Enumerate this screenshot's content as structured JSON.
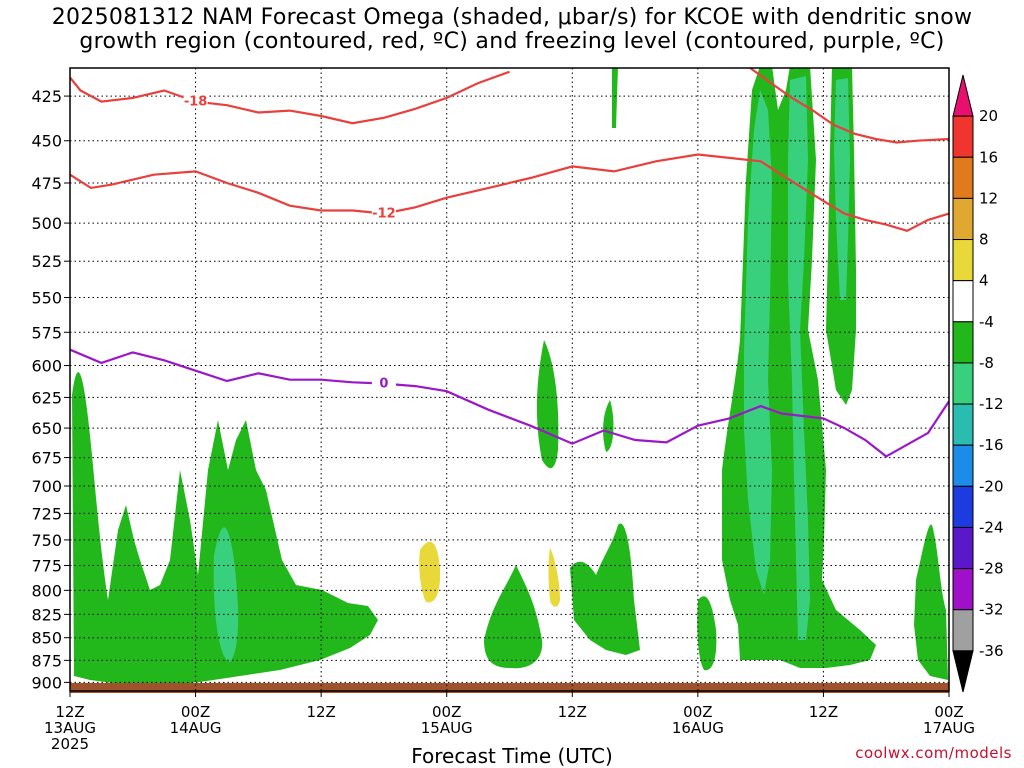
{
  "title": {
    "line1": "2025081312 NAM Forecast Omega (shaded, μbar/s) for KCOE with dendritic snow",
    "line2": "growth region (contoured, red, ºC) and freezing level (contoured, purple, ºC)"
  },
  "xlabel": "Forecast Time (UTC)",
  "credit": "coolwx.com/models",
  "chart_data": {
    "type": "heatmap",
    "xlabel": "Forecast Time (UTC)",
    "ylabel": "",
    "x_ticks": [
      {
        "l1": "12Z",
        "l2": "13AUG",
        "l3": "2025"
      },
      {
        "l1": "00Z",
        "l2": "14AUG",
        "l3": ""
      },
      {
        "l1": "12Z",
        "l2": "",
        "l3": ""
      },
      {
        "l1": "00Z",
        "l2": "15AUG",
        "l3": ""
      },
      {
        "l1": "12Z",
        "l2": "",
        "l3": ""
      },
      {
        "l1": "00Z",
        "l2": "16AUG",
        "l3": ""
      },
      {
        "l1": "12Z",
        "l2": "",
        "l3": ""
      },
      {
        "l1": "00Z",
        "l2": "17AUG",
        "l3": ""
      }
    ],
    "x_range_hours": [
      0,
      84
    ],
    "y_axis": "pressure (mb), inverted",
    "y_range": [
      410,
      910
    ],
    "y_ticks": [
      425,
      450,
      475,
      500,
      525,
      550,
      575,
      600,
      625,
      650,
      675,
      700,
      725,
      750,
      775,
      800,
      825,
      850,
      875,
      900
    ],
    "grid": true,
    "colorbar": {
      "labels": [
        "20",
        "16",
        "12",
        "8",
        "4",
        "-4",
        "-8",
        "-12",
        "-16",
        "-20",
        "-24",
        "-28",
        "-32",
        "-36"
      ],
      "colors": [
        "#e8106e",
        "#f0342e",
        "#e07a1c",
        "#e0a830",
        "#e8d83a",
        "#ffffff",
        "#22b81c",
        "#38d07c",
        "#2abcb0",
        "#1c8ce8",
        "#1c3ce0",
        "#5a18c8",
        "#a010c8",
        "#a0a0a0",
        "#000000"
      ]
    },
    "contours": {
      "dendritic_red": [
        {
          "value": -18,
          "label": "-18",
          "color": "#e8403c",
          "points": [
            [
              0,
              415
            ],
            [
              1,
              422
            ],
            [
              3,
              428
            ],
            [
              6,
              426
            ],
            [
              9,
              422
            ],
            [
              12,
              428
            ],
            [
              15,
              430
            ],
            [
              18,
              434
            ],
            [
              21,
              433
            ],
            [
              24,
              436
            ],
            [
              27,
              440
            ],
            [
              30,
              437
            ],
            [
              33,
              432
            ],
            [
              36,
              426
            ],
            [
              39,
              418
            ],
            [
              42,
              412
            ]
          ]
        },
        {
          "value": -18,
          "label": "",
          "color": "#e8403c",
          "points": [
            [
              65,
              410
            ],
            [
              67,
              418
            ],
            [
              69,
              426
            ],
            [
              71,
              433
            ],
            [
              73,
              441
            ],
            [
              75,
              446
            ],
            [
              77,
              449
            ],
            [
              79,
              451
            ],
            [
              81,
              450
            ],
            [
              84,
              449
            ]
          ]
        },
        {
          "value": -12,
          "label": "-12",
          "color": "#e8403c",
          "points": [
            [
              0,
              470
            ],
            [
              2,
              478
            ],
            [
              4,
              476
            ],
            [
              8,
              470
            ],
            [
              12,
              468
            ],
            [
              15,
              475
            ],
            [
              18,
              481
            ],
            [
              21,
              489
            ],
            [
              24,
              492
            ],
            [
              27,
              492
            ],
            [
              30,
              494
            ],
            [
              33,
              490
            ],
            [
              36,
              484
            ],
            [
              40,
              478
            ],
            [
              44,
              472
            ],
            [
              48,
              465
            ],
            [
              52,
              468
            ],
            [
              56,
              462
            ],
            [
              60,
              458
            ],
            [
              63,
              460
            ],
            [
              66,
              462
            ],
            [
              68,
              470
            ],
            [
              70,
              478
            ],
            [
              72,
              486
            ],
            [
              74,
              494
            ],
            [
              76,
              498
            ],
            [
              78,
              501
            ],
            [
              80,
              505
            ],
            [
              82,
              498
            ],
            [
              84,
              494
            ]
          ]
        }
      ],
      "freezing_purple": [
        {
          "value": 0,
          "label": "0",
          "color": "#9a18c8",
          "points": [
            [
              0,
              588
            ],
            [
              3,
              598
            ],
            [
              6,
              590
            ],
            [
              9,
              596
            ],
            [
              12,
              604
            ],
            [
              15,
              612
            ],
            [
              18,
              606
            ],
            [
              21,
              611
            ],
            [
              24,
              611
            ],
            [
              27,
              613
            ],
            [
              30,
              614
            ],
            [
              33,
              616
            ],
            [
              36,
              620
            ],
            [
              40,
              635
            ],
            [
              44,
              648
            ],
            [
              48,
              663
            ],
            [
              51,
              652
            ],
            [
              54,
              660
            ],
            [
              57,
              662
            ],
            [
              60,
              648
            ],
            [
              63,
              642
            ],
            [
              66,
              632
            ],
            [
              68,
              638
            ],
            [
              70,
              640
            ],
            [
              72,
              642
            ],
            [
              74,
              650
            ],
            [
              76,
              660
            ],
            [
              78,
              674
            ],
            [
              80,
              664
            ],
            [
              82,
              654
            ],
            [
              84,
              628
            ]
          ]
        }
      ]
    },
    "omega_regions_note": "green (-4 to -8) and teal (-8 to -16) upward motion shading, yellow (4 to 8) weak sinking"
  }
}
